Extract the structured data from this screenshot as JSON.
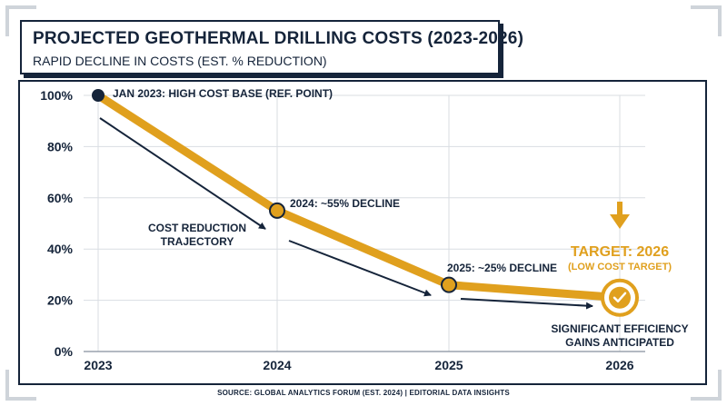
{
  "title": "PROJECTED GEOTHERMAL DRILLING COSTS (2023-2026)",
  "subtitle": "RAPID DECLINE IN COSTS (EST. % REDUCTION)",
  "source": "SOURCE: GLOBAL ANALYTICS FORUM (EST. 2024) | EDITORIAL DATA INSIGHTS",
  "colors": {
    "line": "#e0a01e",
    "navy": "#15243a",
    "grid": "#d9dde2"
  },
  "chart_data": {
    "type": "line",
    "x": [
      2023,
      2024,
      2025,
      2026
    ],
    "x_tick_labels": [
      "2023",
      "2024",
      "2025",
      "2026"
    ],
    "values": [
      100,
      55,
      26,
      21
    ],
    "ylim": [
      0,
      100
    ],
    "y_ticks": [
      0,
      20,
      40,
      60,
      80,
      100
    ],
    "y_tick_labels": [
      "0%",
      "20%",
      "40%",
      "60%",
      "80%",
      "100%"
    ],
    "grid": true,
    "annotations": {
      "point_2023": "JAN 2023: HIGH COST BASE (REF. POINT)",
      "point_2024": "2024: ~55% DECLINE",
      "point_2025": "2025: ~25% DECLINE",
      "trajectory_line1": "COST REDUCTION",
      "trajectory_line2": "TRAJECTORY",
      "target_title": "TARGET: 2026",
      "target_sub": "(LOW COST TARGET)",
      "gains_line1": "SIGNIFICANT EFFICIENCY",
      "gains_line2": "GAINS ANTICIPATED"
    }
  }
}
